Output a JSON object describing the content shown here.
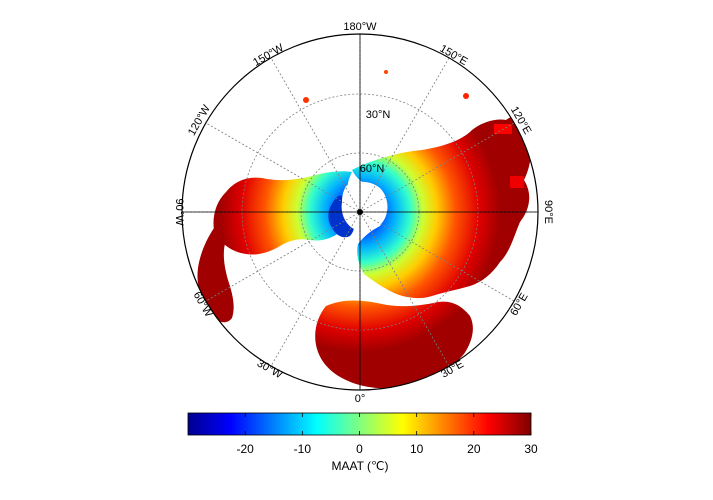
{
  "map": {
    "projection": "north-polar-stereographic",
    "center_marker": "north-pole",
    "ocean_color": "#ffffff",
    "graticule_color": "#7f7f7f",
    "longitude_labels": {
      "lon_180": "180°W",
      "lon_150w": "150°W",
      "lon_150e": "150°E",
      "lon_120w": "120°W",
      "lon_120e": "120°E",
      "lon_90w": "90°W",
      "lon_90e": "90°E",
      "lon_60w": "60°W",
      "lon_60e": "60°E",
      "lon_30w": "30°W",
      "lon_30e": "30°E",
      "lon_0": "0°"
    },
    "latitude_labels": {
      "lat_30n": "30°N",
      "lat_60n": "60°N"
    }
  },
  "colorbar": {
    "title": "MAAT (℃)",
    "min": -30,
    "max": 30,
    "ticks": [
      "-20",
      "-10",
      "0",
      "10",
      "20",
      "30"
    ],
    "colormap": "jet",
    "stops": [
      "#00008f",
      "#0000ff",
      "#00ffff",
      "#ffff00",
      "#ff0000",
      "#800000"
    ]
  }
}
